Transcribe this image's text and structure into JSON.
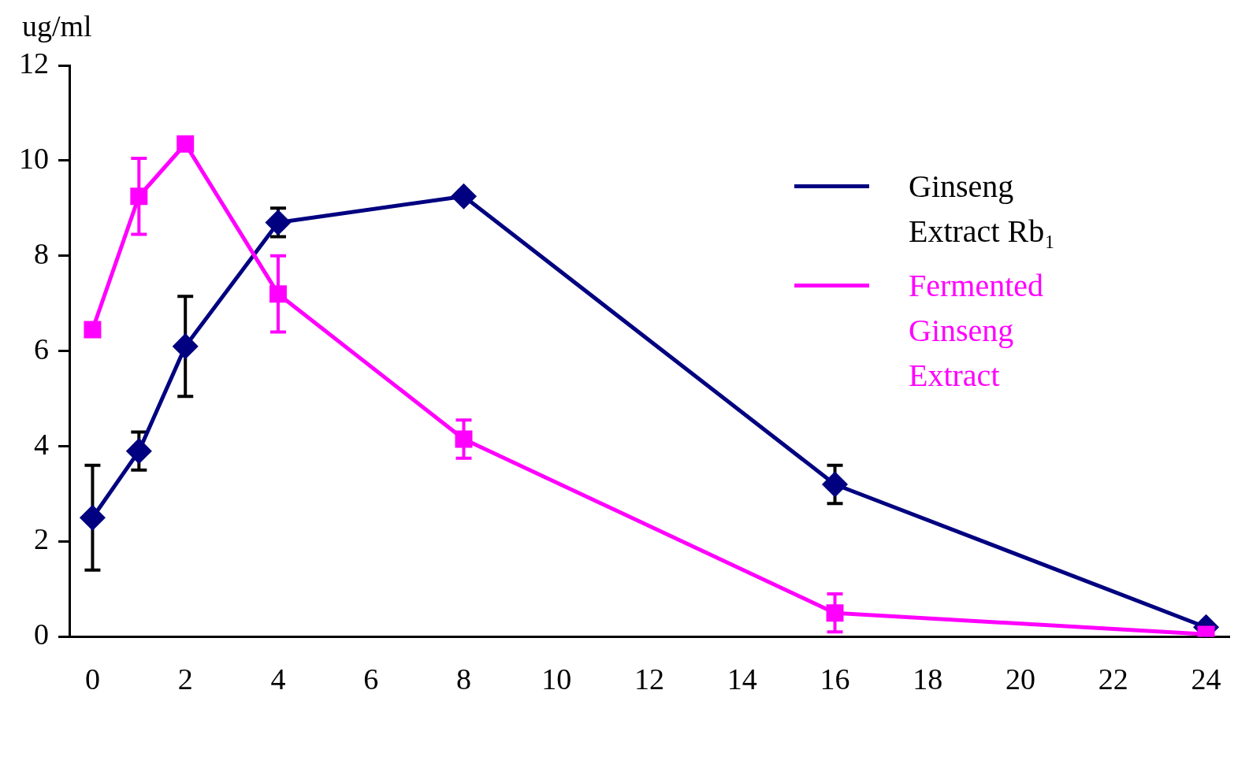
{
  "chart_data": {
    "type": "line",
    "ylabel": "ug/ml",
    "xlim": [
      -0.5,
      24.5
    ],
    "xticks": [
      0,
      2,
      4,
      6,
      8,
      10,
      12,
      14,
      16,
      18,
      20,
      22,
      24
    ],
    "ylim": [
      0,
      12
    ],
    "yticks": [
      0,
      2,
      4,
      6,
      8,
      10,
      12
    ],
    "grid": false,
    "legend": "right",
    "line_style": "solid",
    "series": [
      {
        "name": "Ginseng Extract Rb₁",
        "color": "#000080",
        "marker": "diamond",
        "x": [
          0,
          1,
          2,
          4,
          8,
          16,
          24
        ],
        "values": [
          2.5,
          3.9,
          6.1,
          8.7,
          9.25,
          3.2,
          0.2
        ],
        "errors": [
          1.1,
          0.4,
          1.05,
          0.3,
          null,
          0.4,
          null
        ]
      },
      {
        "name": "Fermented Ginseng Extract",
        "color": "#ff00ff",
        "marker": "square",
        "x": [
          0,
          1,
          2,
          4,
          8,
          16,
          24
        ],
        "values": [
          6.45,
          9.25,
          10.35,
          7.2,
          4.15,
          0.5,
          0.05
        ],
        "errors": [
          null,
          0.8,
          null,
          0.8,
          0.4,
          0.4,
          null
        ]
      }
    ]
  }
}
